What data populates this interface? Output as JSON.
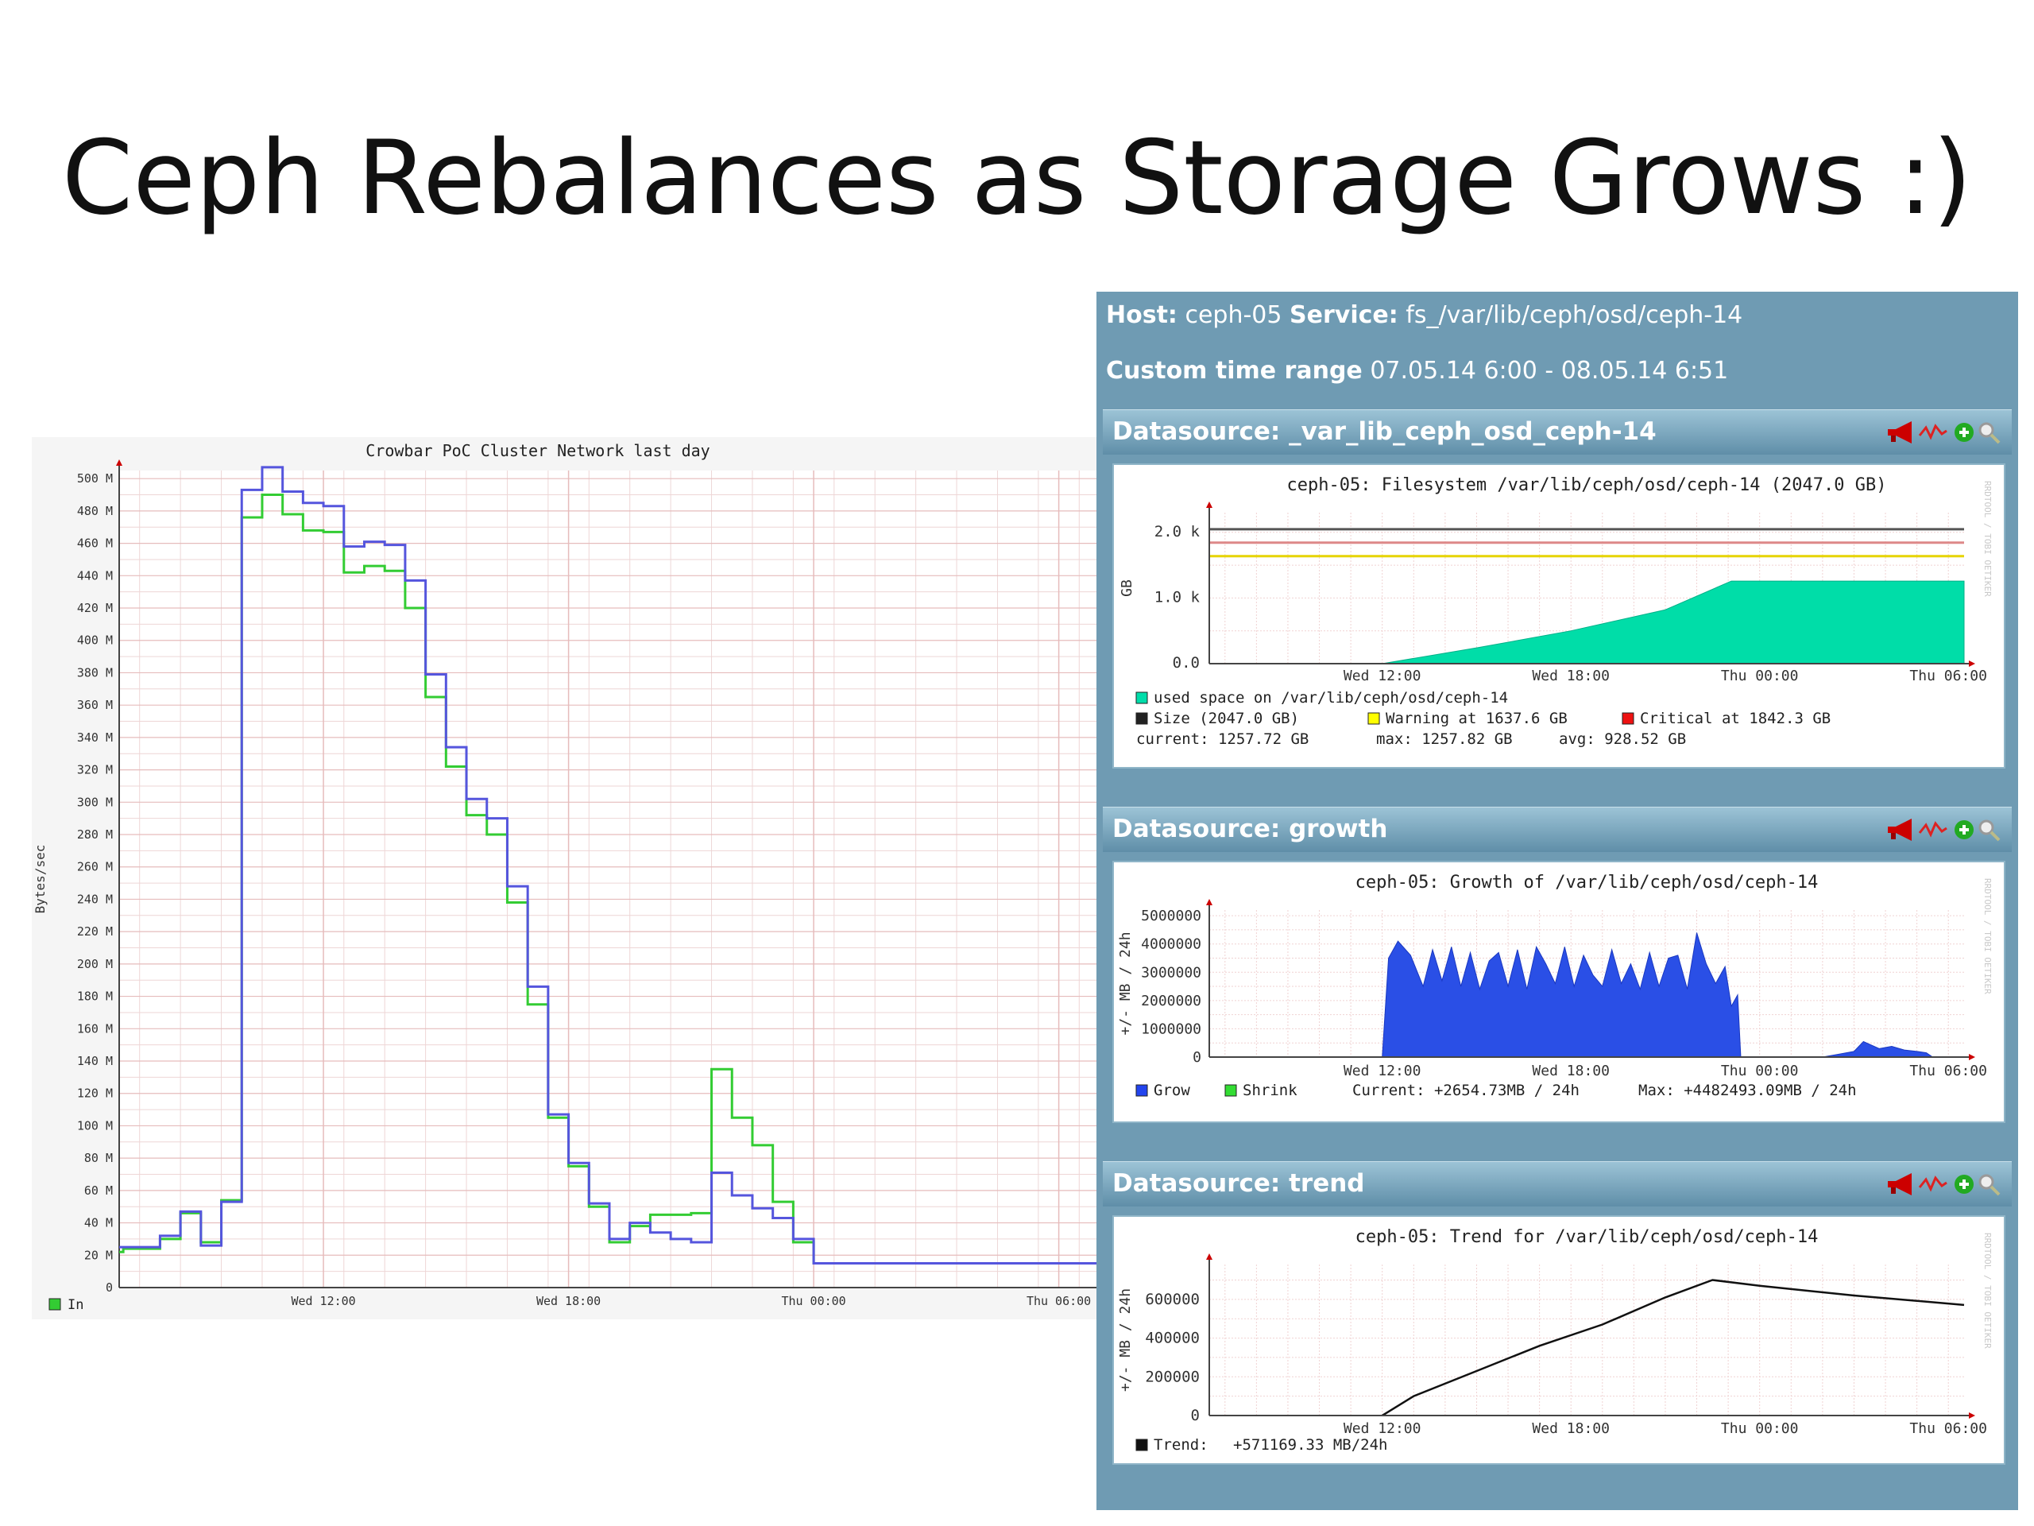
{
  "slide": {
    "title": "Ceph Rebalances as Storage Grows :)"
  },
  "chart_data": [
    {
      "type": "line",
      "title": "Crowbar PoC Cluster Network last day",
      "ylabel": "Bytes/sec",
      "xlabel": "",
      "x_ticks": [
        "Wed 12:00",
        "Wed 18:00",
        "Thu 00:00",
        "Thu 06:00"
      ],
      "y_ticks": [
        "0",
        "20 M",
        "40 M",
        "60 M",
        "80 M",
        "100 M",
        "120 M",
        "140 M",
        "160 M",
        "180 M",
        "200 M",
        "220 M",
        "240 M",
        "260 M",
        "280 M",
        "300 M",
        "320 M",
        "340 M",
        "360 M",
        "380 M",
        "400 M",
        "420 M",
        "440 M",
        "460 M",
        "480 M",
        "500 M"
      ],
      "ylim_mb": [
        0,
        505
      ],
      "x": [
        7.0,
        7.1,
        8.0,
        8.5,
        9.0,
        9.5,
        10.0,
        10.5,
        11.0,
        11.5,
        12.0,
        12.5,
        13.0,
        13.5,
        14.0,
        14.5,
        15.0,
        15.5,
        16.0,
        16.5,
        17.0,
        17.5,
        18.0,
        18.5,
        19.0,
        19.5,
        20.0,
        20.5,
        21.0,
        21.5,
        22.0,
        22.5,
        23.0,
        23.5,
        24.0,
        24.5,
        25.0,
        25.5,
        26.0,
        26.5,
        27.0,
        27.5,
        28.0,
        28.5,
        29.0,
        29.5,
        30.0,
        30.5,
        31.0
      ],
      "series": [
        {
          "name": "In",
          "color": "#33cc33",
          "values_mb": [
            22,
            24,
            30,
            46,
            28,
            54,
            476,
            490,
            478,
            468,
            467,
            442,
            446,
            443,
            420,
            365,
            322,
            292,
            280,
            238,
            175,
            105,
            75,
            50,
            28,
            38,
            45,
            45,
            46,
            135,
            105,
            88,
            53,
            28,
            15,
            15,
            15,
            15,
            15,
            15,
            15,
            15,
            15,
            15,
            15,
            15,
            15,
            15,
            15
          ]
        },
        {
          "name": "",
          "color": "#5555dd",
          "values_mb": [
            25,
            25,
            32,
            47,
            26,
            53,
            493,
            507,
            492,
            485,
            483,
            458,
            461,
            459,
            437,
            379,
            334,
            302,
            290,
            248,
            186,
            107,
            77,
            52,
            30,
            40,
            34,
            30,
            28,
            71,
            57,
            49,
            43,
            30,
            15,
            15,
            15,
            15,
            15,
            15,
            15,
            15,
            15,
            15,
            15,
            15,
            15,
            15,
            15
          ]
        }
      ],
      "legend": [
        {
          "label": "In",
          "color": "#33cc33"
        }
      ],
      "grid": true,
      "legend_position": "bottom-left"
    },
    {
      "type": "area",
      "title": "ceph-05: Filesystem /var/lib/ceph/osd/ceph-14 (2047.0 GB)",
      "ylabel": "GB",
      "y_ticks": [
        "0.0",
        "1.0 k",
        "2.0 k"
      ],
      "x_ticks": [
        "Wed 12:00",
        "Wed 18:00",
        "Thu 00:00",
        "Thu 06:00"
      ],
      "ylim": [
        0,
        2300
      ],
      "x_hours": [
        6.5,
        12.0,
        15.0,
        18.0,
        21.0,
        23.1,
        24.0,
        27.0,
        30.5
      ],
      "used_gb": [
        null,
        0,
        240,
        500,
        820,
        1257.72,
        1257.72,
        1257.72,
        1257.72
      ],
      "lines": [
        {
          "name": "Size (2047.0 GB)",
          "value": 2047.0,
          "color": "#555555"
        },
        {
          "name": "Critical at 1842.3 GB",
          "value": 1842.3,
          "color": "#dd8888"
        },
        {
          "name": "Warning at 1637.6 GB",
          "value": 1637.6,
          "color": "#e6d400"
        }
      ],
      "legend": [
        {
          "label": "used space on /var/lib/ceph/osd/ceph-14",
          "color": "#00ddaa"
        },
        {
          "label": "Size (2047.0 GB)",
          "color": "#222222"
        },
        {
          "label": "Warning at 1637.6 GB",
          "color": "#ffff00"
        },
        {
          "label": "Critical at 1842.3 GB",
          "color": "#ee1111"
        }
      ],
      "stats": {
        "current": "current: 1257.72 GB",
        "max": "max: 1257.82 GB",
        "avg": "avg: 928.52 GB"
      },
      "grid": true
    },
    {
      "type": "area",
      "title": "ceph-05: Growth of /var/lib/ceph/osd/ceph-14",
      "ylabel": "+/- MB / 24h",
      "y_ticks": [
        "0",
        "1000000",
        "2000000",
        "3000000",
        "4000000",
        "5000000"
      ],
      "x_ticks": [
        "Wed 12:00",
        "Wed 18:00",
        "Thu 00:00",
        "Thu 06:00"
      ],
      "ylim": [
        0,
        5200000
      ],
      "x_hours": [
        12.0,
        12.2,
        12.5,
        12.9,
        13.3,
        13.6,
        13.9,
        14.2,
        14.5,
        14.8,
        15.1,
        15.4,
        15.7,
        16.0,
        16.3,
        16.6,
        16.9,
        17.2,
        17.5,
        17.8,
        18.1,
        18.4,
        18.7,
        19.0,
        19.3,
        19.6,
        19.9,
        20.2,
        20.5,
        20.8,
        21.1,
        21.4,
        21.7,
        22.0,
        22.3,
        22.6,
        22.9,
        23.1,
        23.3,
        23.4,
        26.0,
        26.5,
        27.0,
        27.3,
        27.8,
        28.2,
        28.6,
        29.0,
        29.3,
        29.5
      ],
      "grow": [
        0,
        3500000,
        4100000,
        3600000,
        2500000,
        3800000,
        2700000,
        3900000,
        2500000,
        3700000,
        2400000,
        3400000,
        3700000,
        2500000,
        3800000,
        2400000,
        3900000,
        3300000,
        2600000,
        3900000,
        2500000,
        3600000,
        2900000,
        2500000,
        3800000,
        2600000,
        3300000,
        2400000,
        3700000,
        2500000,
        3500000,
        3600000,
        2400000,
        4400000,
        3300000,
        2600000,
        3200000,
        1800000,
        2200000,
        0,
        0,
        100000,
        200000,
        550000,
        300000,
        380000,
        250000,
        200000,
        150000,
        0
      ],
      "legend": [
        {
          "label": "Grow",
          "color": "#2244ee"
        },
        {
          "label": "Shrink",
          "color": "#33dd33"
        }
      ],
      "stats": {
        "current": "Current: +2654.73MB / 24h",
        "max": "Max: +4482493.09MB / 24h"
      },
      "grid": true
    },
    {
      "type": "line",
      "title": "ceph-05: Trend for /var/lib/ceph/osd/ceph-14",
      "ylabel": "+/- MB / 24h",
      "y_ticks": [
        "0",
        "200000",
        "400000",
        "600000"
      ],
      "x_ticks": [
        "Wed 12:00",
        "Wed 18:00",
        "Thu 00:00",
        "Thu 06:00"
      ],
      "ylim": [
        0,
        780000
      ],
      "x_hours": [
        12.0,
        13.0,
        15.0,
        17.0,
        19.0,
        21.0,
        22.5,
        24.0,
        27.0,
        30.5
      ],
      "trend": [
        0,
        100000,
        230000,
        360000,
        470000,
        610000,
        700000,
        670000,
        620000,
        571169.33
      ],
      "legend": [
        {
          "label": "Trend:",
          "color": "#111111"
        }
      ],
      "stats": {
        "current": "+571169.33 MB/24h"
      },
      "grid": true
    }
  ],
  "nagios": {
    "host_label": "Host:",
    "host_value": "ceph-05",
    "service_label": "Service:",
    "service_value": "fs_/var/lib/ceph/osd/ceph-14",
    "range_label": "Custom time range",
    "range_value": "07.05.14 6:00 - 08.05.14 6:51",
    "datasources": [
      {
        "title": "Datasource: _var_lib_ceph_osd_ceph-14"
      },
      {
        "title": "Datasource: growth"
      },
      {
        "title": "Datasource: trend"
      }
    ],
    "watermark": "RRDTOOL / TOBI OETIKER",
    "icons": [
      "megaphone-icon",
      "graph-icon",
      "add-icon",
      "zoom-icon"
    ]
  }
}
